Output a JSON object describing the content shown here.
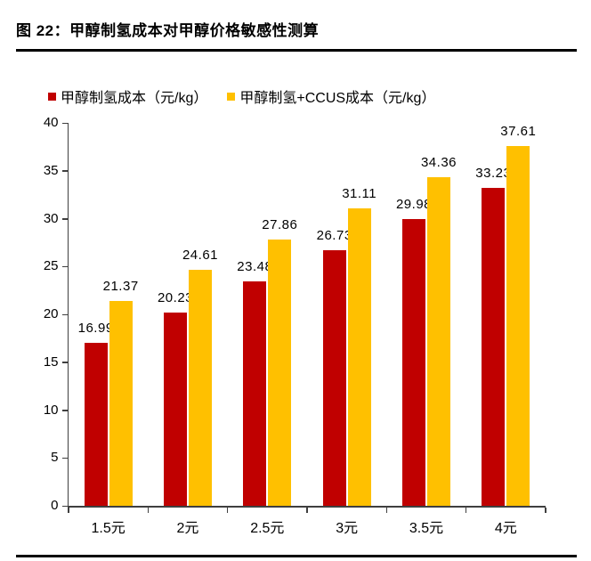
{
  "figure": {
    "title": "图 22：甲醇制氢成本对甲醇价格敏感性测算"
  },
  "chart_data": {
    "type": "bar",
    "title": "",
    "xlabel": "",
    "ylabel": "",
    "categories": [
      "1.5元",
      "2元",
      "2.5元",
      "3元",
      "3.5元",
      "4元"
    ],
    "series": [
      {
        "name": "甲醇制氢成本（元/kg）",
        "color": "#C00000",
        "values": [
          16.99,
          20.23,
          23.48,
          26.73,
          29.98,
          33.23
        ],
        "labels": [
          "16.99",
          "20.23",
          "23.48",
          "26.73",
          "29.98",
          "33.23"
        ]
      },
      {
        "name": "甲醇制氢+CCUS成本（元/kg）",
        "color": "#FFC000",
        "values": [
          21.37,
          24.61,
          27.86,
          31.11,
          34.36,
          37.61
        ],
        "labels": [
          "21.37",
          "24.61",
          "27.86",
          "31.11",
          "34.36",
          "37.61"
        ]
      }
    ],
    "ylim": [
      0,
      40
    ],
    "yticks": [
      0,
      5,
      10,
      15,
      20,
      25,
      30,
      35,
      40
    ],
    "ytick_labels": [
      "0",
      "5",
      "10",
      "15",
      "20",
      "25",
      "30",
      "35",
      "40"
    ],
    "grid": false,
    "legend_position": "top",
    "bar_labels_shown": true
  },
  "colors": {
    "series1": "#C00000",
    "series2": "#FFC000",
    "axis": "#3f3f3f",
    "text": "#000000",
    "rule": "#000000",
    "background": "#FFFFFF"
  }
}
